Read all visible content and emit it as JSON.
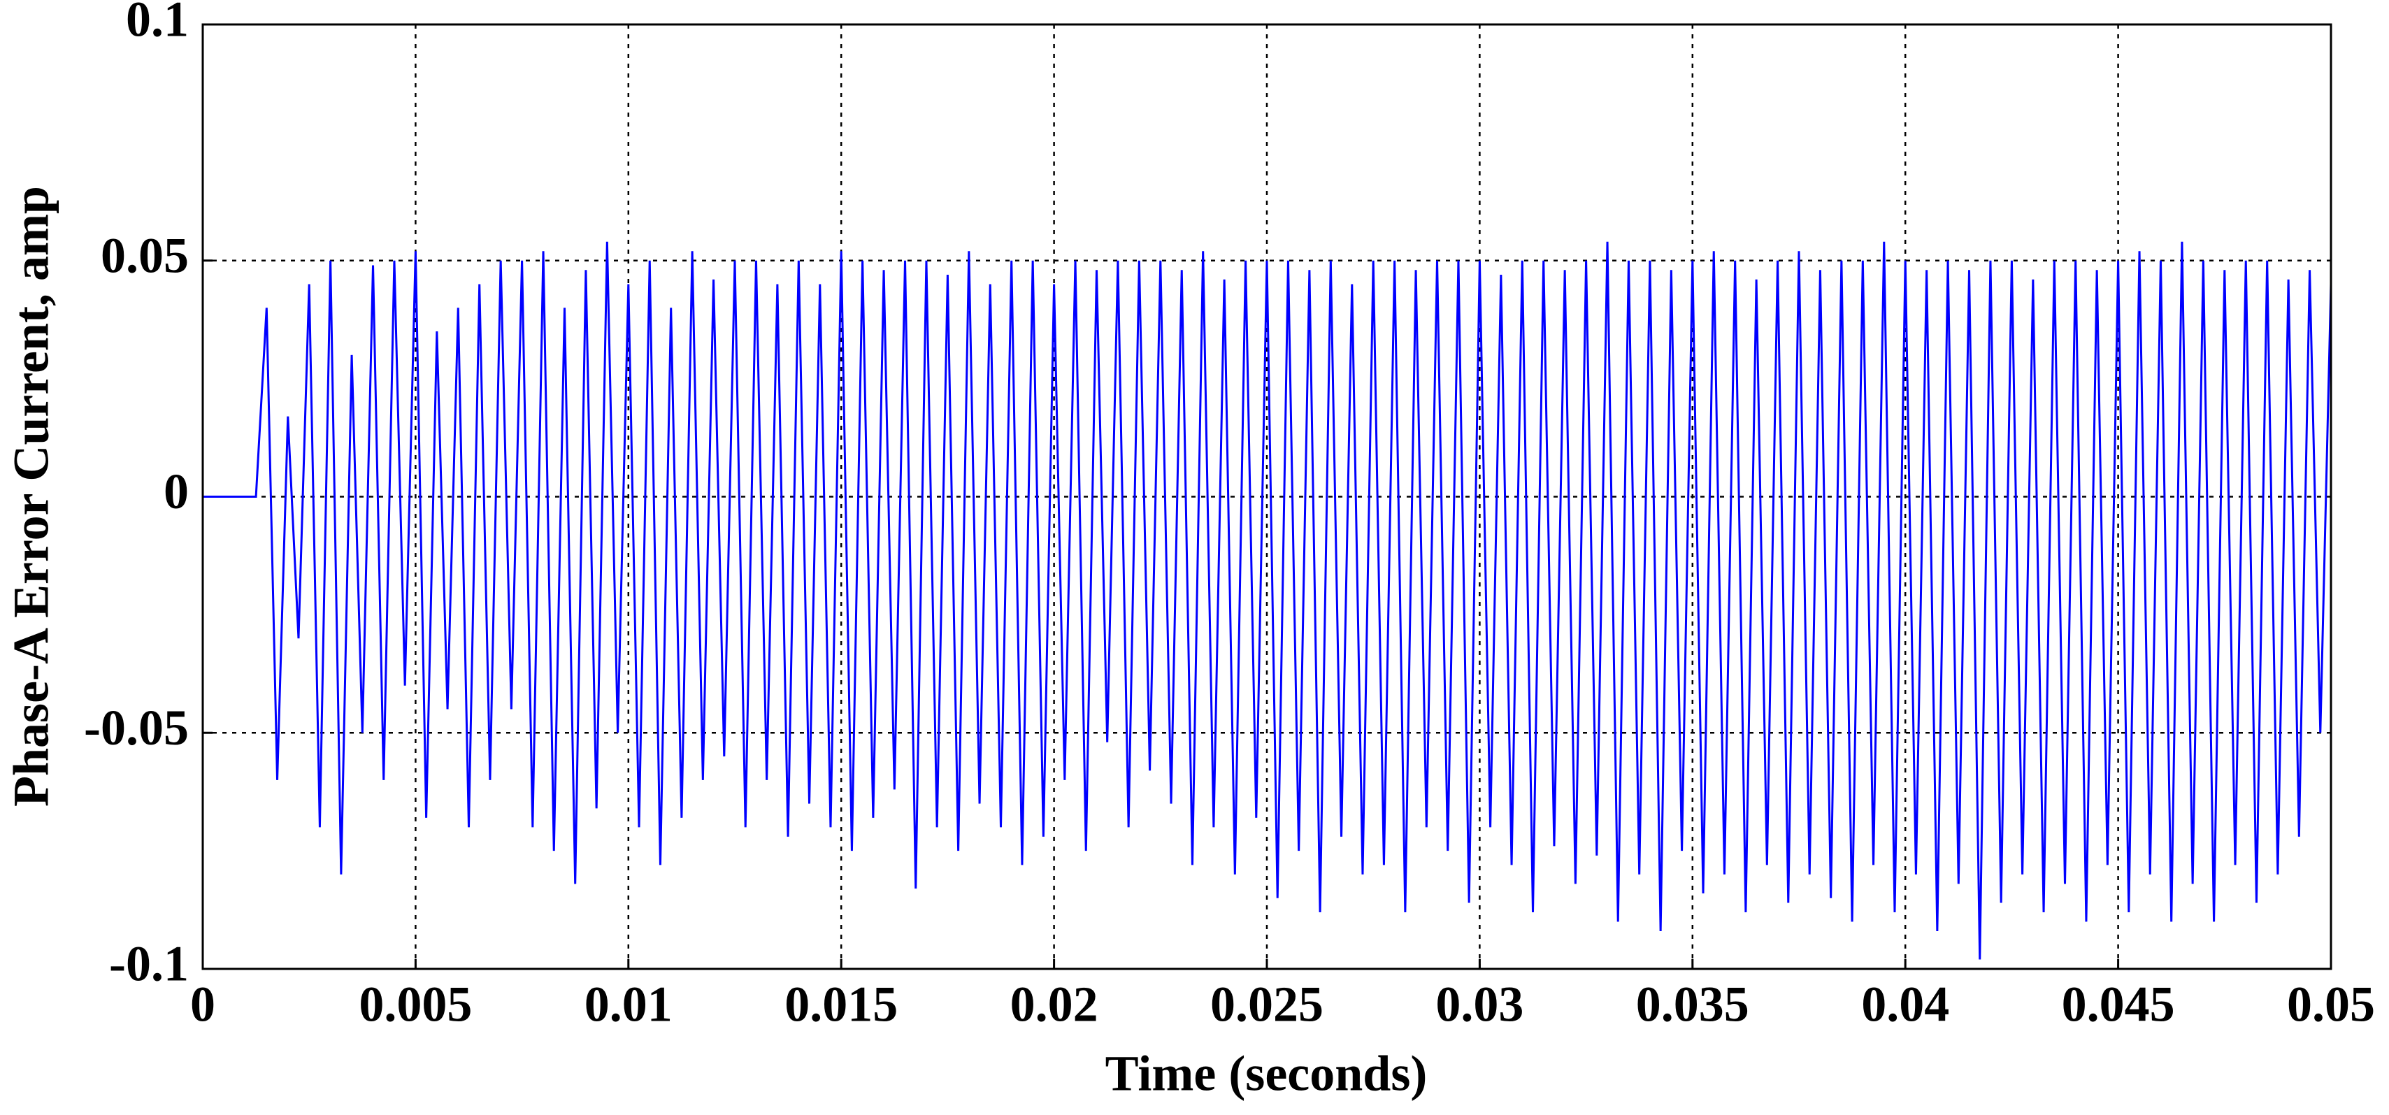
{
  "chart_data": {
    "type": "line",
    "xlabel": "Time (seconds)",
    "ylabel": "Phase-A Error Current, amp",
    "color": "#0000ff",
    "grid": true,
    "xlim": [
      0,
      0.05
    ],
    "ylim": [
      -0.1,
      0.1
    ],
    "xticks": [
      0,
      0.005,
      0.01,
      0.015,
      0.02,
      0.025,
      0.03,
      0.035,
      0.04,
      0.045,
      0.05
    ],
    "yticks": [
      -0.1,
      -0.05,
      0,
      0.05,
      0.1
    ],
    "x": [
      0,
      0.00025,
      0.0005,
      0.00075,
      0.001,
      0.00125,
      0.0015,
      0.00175,
      0.002,
      0.00225,
      0.0025,
      0.00275,
      0.003,
      0.00325,
      0.0035,
      0.00375,
      0.004,
      0.00425,
      0.0045,
      0.00475,
      0.005,
      0.00525,
      0.0055,
      0.00575,
      0.006,
      0.00625,
      0.0065,
      0.00675,
      0.007,
      0.00725,
      0.0075,
      0.00775,
      0.008,
      0.00825,
      0.0085,
      0.00875,
      0.009,
      0.00925,
      0.0095,
      0.00975,
      0.01,
      0.01025,
      0.0105,
      0.01075,
      0.011,
      0.01125,
      0.0115,
      0.01175,
      0.012,
      0.01225,
      0.0125,
      0.01275,
      0.013,
      0.01325,
      0.0135,
      0.01375,
      0.014,
      0.01425,
      0.0145,
      0.01475,
      0.015,
      0.01525,
      0.0155,
      0.01575,
      0.016,
      0.01625,
      0.0165,
      0.01675,
      0.017,
      0.01725,
      0.0175,
      0.01775,
      0.018,
      0.01825,
      0.0185,
      0.01875,
      0.019,
      0.01925,
      0.0195,
      0.01975,
      0.02,
      0.02025,
      0.0205,
      0.02075,
      0.021,
      0.02125,
      0.0215,
      0.02175,
      0.022,
      0.02225,
      0.0225,
      0.02275,
      0.023,
      0.02325,
      0.0235,
      0.02375,
      0.024,
      0.02425,
      0.0245,
      0.02475,
      0.025,
      0.02525,
      0.0255,
      0.02575,
      0.026,
      0.02625,
      0.0265,
      0.02675,
      0.027,
      0.02725,
      0.0275,
      0.02775,
      0.028,
      0.02825,
      0.0285,
      0.02875,
      0.029,
      0.02925,
      0.0295,
      0.02975,
      0.03,
      0.03025,
      0.0305,
      0.03075,
      0.031,
      0.03125,
      0.0315,
      0.03175,
      0.032,
      0.03225,
      0.0325,
      0.03275,
      0.033,
      0.03325,
      0.0335,
      0.03375,
      0.034,
      0.03425,
      0.0345,
      0.03475,
      0.035,
      0.03525,
      0.0355,
      0.03575,
      0.036,
      0.03625,
      0.0365,
      0.03675,
      0.037,
      0.03725,
      0.0375,
      0.03775,
      0.038,
      0.03825,
      0.0385,
      0.03875,
      0.039,
      0.03925,
      0.0395,
      0.03975,
      0.04,
      0.04025,
      0.0405,
      0.04075,
      0.041,
      0.04125,
      0.0415,
      0.04175,
      0.042,
      0.04225,
      0.0425,
      0.04275,
      0.043,
      0.04325,
      0.0435,
      0.04375,
      0.044,
      0.04425,
      0.0445,
      0.04475,
      0.045,
      0.04525,
      0.0455,
      0.04575,
      0.046,
      0.04625,
      0.0465,
      0.04675,
      0.047,
      0.04725,
      0.0475,
      0.04775,
      0.048,
      0.04825,
      0.0485,
      0.04875,
      0.049,
      0.04925,
      0.0495,
      0.04975,
      0.05
    ],
    "values": [
      0,
      0,
      0,
      0,
      0,
      0,
      0.04,
      -0.06,
      0.017,
      -0.03,
      0.045,
      -0.07,
      0.05,
      -0.08,
      0.03,
      -0.05,
      0.049,
      -0.06,
      0.05,
      -0.04,
      0.052,
      -0.068,
      0.035,
      -0.045,
      0.04,
      -0.07,
      0.045,
      -0.06,
      0.05,
      -0.045,
      0.05,
      -0.07,
      0.052,
      -0.075,
      0.04,
      -0.082,
      0.048,
      -0.066,
      0.054,
      -0.05,
      0.045,
      -0.07,
      0.05,
      -0.078,
      0.04,
      -0.068,
      0.052,
      -0.06,
      0.046,
      -0.055,
      0.05,
      -0.07,
      0.05,
      -0.06,
      0.045,
      -0.072,
      0.05,
      -0.065,
      0.045,
      -0.07,
      0.052,
      -0.075,
      0.05,
      -0.068,
      0.048,
      -0.062,
      0.05,
      -0.083,
      0.05,
      -0.07,
      0.047,
      -0.075,
      0.052,
      -0.065,
      0.045,
      -0.07,
      0.05,
      -0.078,
      0.05,
      -0.072,
      0.045,
      -0.06,
      0.05,
      -0.075,
      0.048,
      -0.052,
      0.05,
      -0.07,
      0.05,
      -0.058,
      0.05,
      -0.065,
      0.048,
      -0.078,
      0.052,
      -0.07,
      0.046,
      -0.08,
      0.05,
      -0.068,
      0.05,
      -0.085,
      0.05,
      -0.075,
      0.048,
      -0.088,
      0.05,
      -0.072,
      0.045,
      -0.08,
      0.05,
      -0.078,
      0.05,
      -0.088,
      0.048,
      -0.07,
      0.05,
      -0.075,
      0.05,
      -0.086,
      0.05,
      -0.07,
      0.047,
      -0.078,
      0.05,
      -0.088,
      0.05,
      -0.074,
      0.048,
      -0.082,
      0.05,
      -0.076,
      0.054,
      -0.09,
      0.05,
      -0.08,
      0.05,
      -0.092,
      0.048,
      -0.075,
      0.05,
      -0.084,
      0.052,
      -0.08,
      0.05,
      -0.088,
      0.046,
      -0.078,
      0.05,
      -0.086,
      0.052,
      -0.08,
      0.048,
      -0.085,
      0.05,
      -0.09,
      0.05,
      -0.078,
      0.054,
      -0.088,
      0.05,
      -0.08,
      0.048,
      -0.092,
      0.05,
      -0.082,
      0.048,
      -0.098,
      0.05,
      -0.086,
      0.05,
      -0.08,
      0.046,
      -0.088,
      0.05,
      -0.082,
      0.05,
      -0.09,
      0.048,
      -0.078,
      0.05,
      -0.088,
      0.052,
      -0.08,
      0.05,
      -0.09,
      0.054,
      -0.082,
      0.05,
      -0.09,
      0.048,
      -0.078,
      0.05,
      -0.086,
      0.05,
      -0.08,
      0.046,
      -0.072,
      0.048,
      -0.05,
      0.045
    ]
  }
}
